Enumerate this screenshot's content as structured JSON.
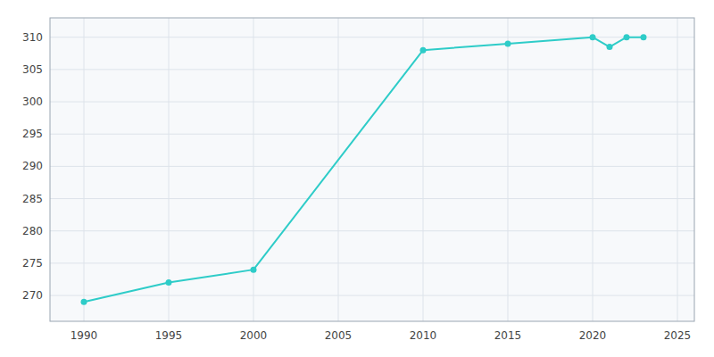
{
  "chart_data": {
    "type": "line",
    "x": [
      1990,
      1995,
      2000,
      2010,
      2015,
      2020,
      2021,
      2022,
      2023
    ],
    "values": [
      269,
      272,
      274,
      308,
      309,
      310,
      308.5,
      310,
      310
    ],
    "color": "#2ECCC8",
    "marker": "circle",
    "grid": true,
    "xlim": [
      1988,
      2026
    ],
    "ylim": [
      266,
      313
    ],
    "xticks": [
      1990,
      1995,
      2000,
      2005,
      2010,
      2015,
      2020,
      2025
    ],
    "yticks": [
      270,
      275,
      280,
      285,
      290,
      295,
      300,
      305,
      310
    ]
  }
}
